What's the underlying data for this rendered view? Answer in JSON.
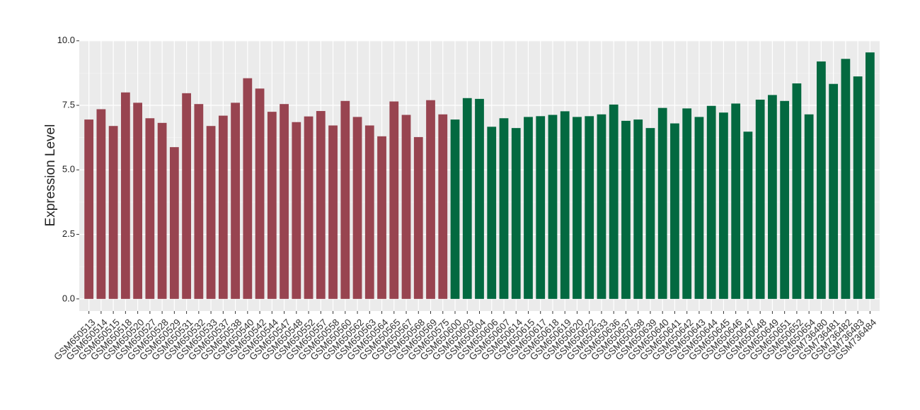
{
  "chart_data": {
    "type": "bar",
    "y_label": "Expression Level",
    "categories": [
      "GSM650513",
      "GSM650514",
      "GSM650515",
      "GSM650518",
      "GSM650520",
      "GSM650527",
      "GSM650528",
      "GSM650529",
      "GSM650531",
      "GSM650532",
      "GSM650533",
      "GSM650537",
      "GSM650538",
      "GSM650540",
      "GSM650542",
      "GSM650544",
      "GSM650547",
      "GSM650548",
      "GSM650552",
      "GSM650557",
      "GSM650558",
      "GSM650560",
      "GSM650562",
      "GSM650563",
      "GSM650564",
      "GSM650565",
      "GSM650567",
      "GSM650568",
      "GSM650569",
      "GSM650575",
      "GSM650600",
      "GSM650603",
      "GSM650604",
      "GSM650606",
      "GSM650607",
      "GSM650614",
      "GSM650615",
      "GSM650617",
      "GSM650618",
      "GSM650619",
      "GSM650620",
      "GSM650622",
      "GSM650633",
      "GSM650636",
      "GSM650637",
      "GSM650638",
      "GSM650639",
      "GSM650640",
      "GSM650641",
      "GSM650642",
      "GSM650643",
      "GSM650644",
      "GSM650645",
      "GSM650646",
      "GSM650647",
      "GSM650648",
      "GSM650649",
      "GSM650651",
      "GSM650652",
      "GSM650654",
      "GSM736480",
      "GSM736481",
      "GSM736482",
      "GSM736483",
      "GSM736484"
    ],
    "values": [
      6.95,
      7.35,
      6.7,
      8.0,
      7.6,
      7.0,
      6.82,
      5.88,
      7.97,
      7.55,
      6.7,
      7.1,
      7.6,
      8.55,
      8.15,
      7.25,
      7.55,
      6.85,
      7.07,
      7.28,
      6.72,
      7.67,
      7.05,
      6.72,
      6.3,
      7.65,
      7.13,
      6.27,
      7.7,
      7.15,
      6.95,
      7.78,
      7.75,
      6.67,
      7.0,
      6.62,
      7.05,
      7.08,
      7.13,
      7.27,
      7.05,
      7.08,
      7.15,
      7.53,
      6.9,
      6.95,
      6.62,
      7.4,
      6.8,
      7.38,
      7.05,
      7.48,
      7.22,
      7.57,
      6.48,
      7.72,
      7.9,
      7.67,
      8.35,
      7.15,
      9.2,
      8.33,
      9.3,
      8.62,
      9.55
    ],
    "colors": [
      "#984450",
      "#984450",
      "#984450",
      "#984450",
      "#984450",
      "#984450",
      "#984450",
      "#984450",
      "#984450",
      "#984450",
      "#984450",
      "#984450",
      "#984450",
      "#984450",
      "#984450",
      "#984450",
      "#984450",
      "#984450",
      "#984450",
      "#984450",
      "#984450",
      "#984450",
      "#984450",
      "#984450",
      "#984450",
      "#984450",
      "#984450",
      "#984450",
      "#984450",
      "#984450",
      "#036940",
      "#036940",
      "#036940",
      "#036940",
      "#036940",
      "#036940",
      "#036940",
      "#036940",
      "#036940",
      "#036940",
      "#036940",
      "#036940",
      "#036940",
      "#036940",
      "#036940",
      "#036940",
      "#036940",
      "#036940",
      "#036940",
      "#036940",
      "#036940",
      "#036940",
      "#036940",
      "#036940",
      "#036940",
      "#036940",
      "#036940",
      "#036940",
      "#036940",
      "#036940",
      "#036940",
      "#036940",
      "#036940",
      "#036940",
      "#036940"
    ],
    "ylim": [
      -0.47,
      10.02
    ],
    "yticks": [
      {
        "value": 0,
        "label": "0.0"
      },
      {
        "value": 2.5,
        "label": "2.5"
      },
      {
        "value": 5,
        "label": "5.0"
      },
      {
        "value": 7.5,
        "label": "7.5"
      },
      {
        "value": 10,
        "label": "10.0"
      }
    ],
    "grid": true
  }
}
